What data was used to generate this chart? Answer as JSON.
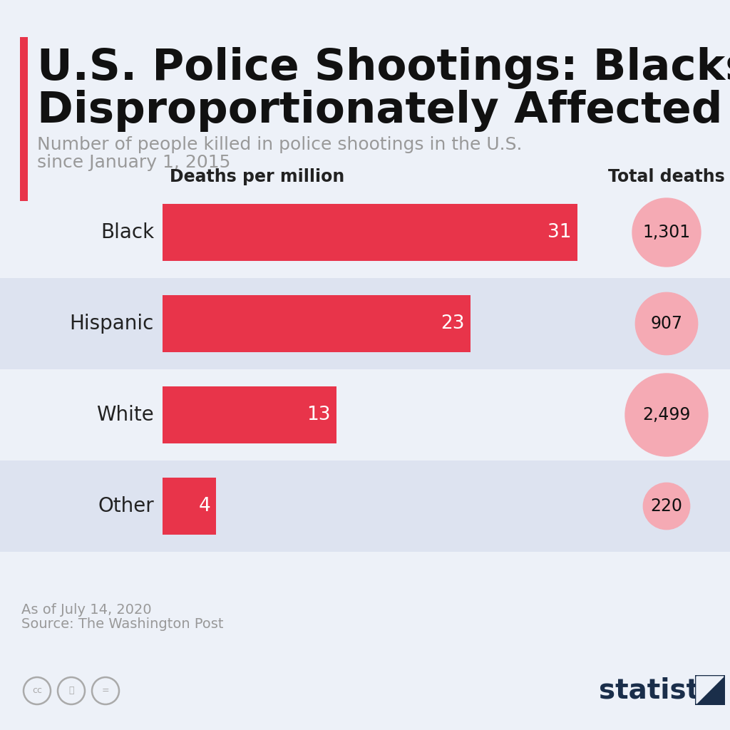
{
  "title_line1": "U.S. Police Shootings: Blacks",
  "title_line2": "Disproportionately Affected",
  "subtitle_line1": "Number of people killed in police shootings in the U.S.",
  "subtitle_line2": "since January 1, 2015",
  "categories": [
    "Black",
    "Hispanic",
    "White",
    "Other"
  ],
  "deaths_per_million": [
    31,
    23,
    13,
    4
  ],
  "total_deaths": [
    1301,
    907,
    2499,
    220
  ],
  "total_deaths_labels": [
    "1,301",
    "907",
    "2,499",
    "220"
  ],
  "bar_color": "#e8344a",
  "background_color": "#edf1f8",
  "row_bg_white": "#edf1f8",
  "row_bg_blue": "#dde3f0",
  "circle_color": "#f5aab4",
  "title_color": "#111111",
  "subtitle_color": "#999999",
  "label_color": "#222222",
  "footer_color": "#999999",
  "col_header_left": "Deaths per million",
  "col_header_right": "Total deaths",
  "statista_color": "#1a2e4a",
  "max_bar_value": 31,
  "source_line1": "As of July 14, 2020",
  "source_line2": "Source: The Washington Post"
}
